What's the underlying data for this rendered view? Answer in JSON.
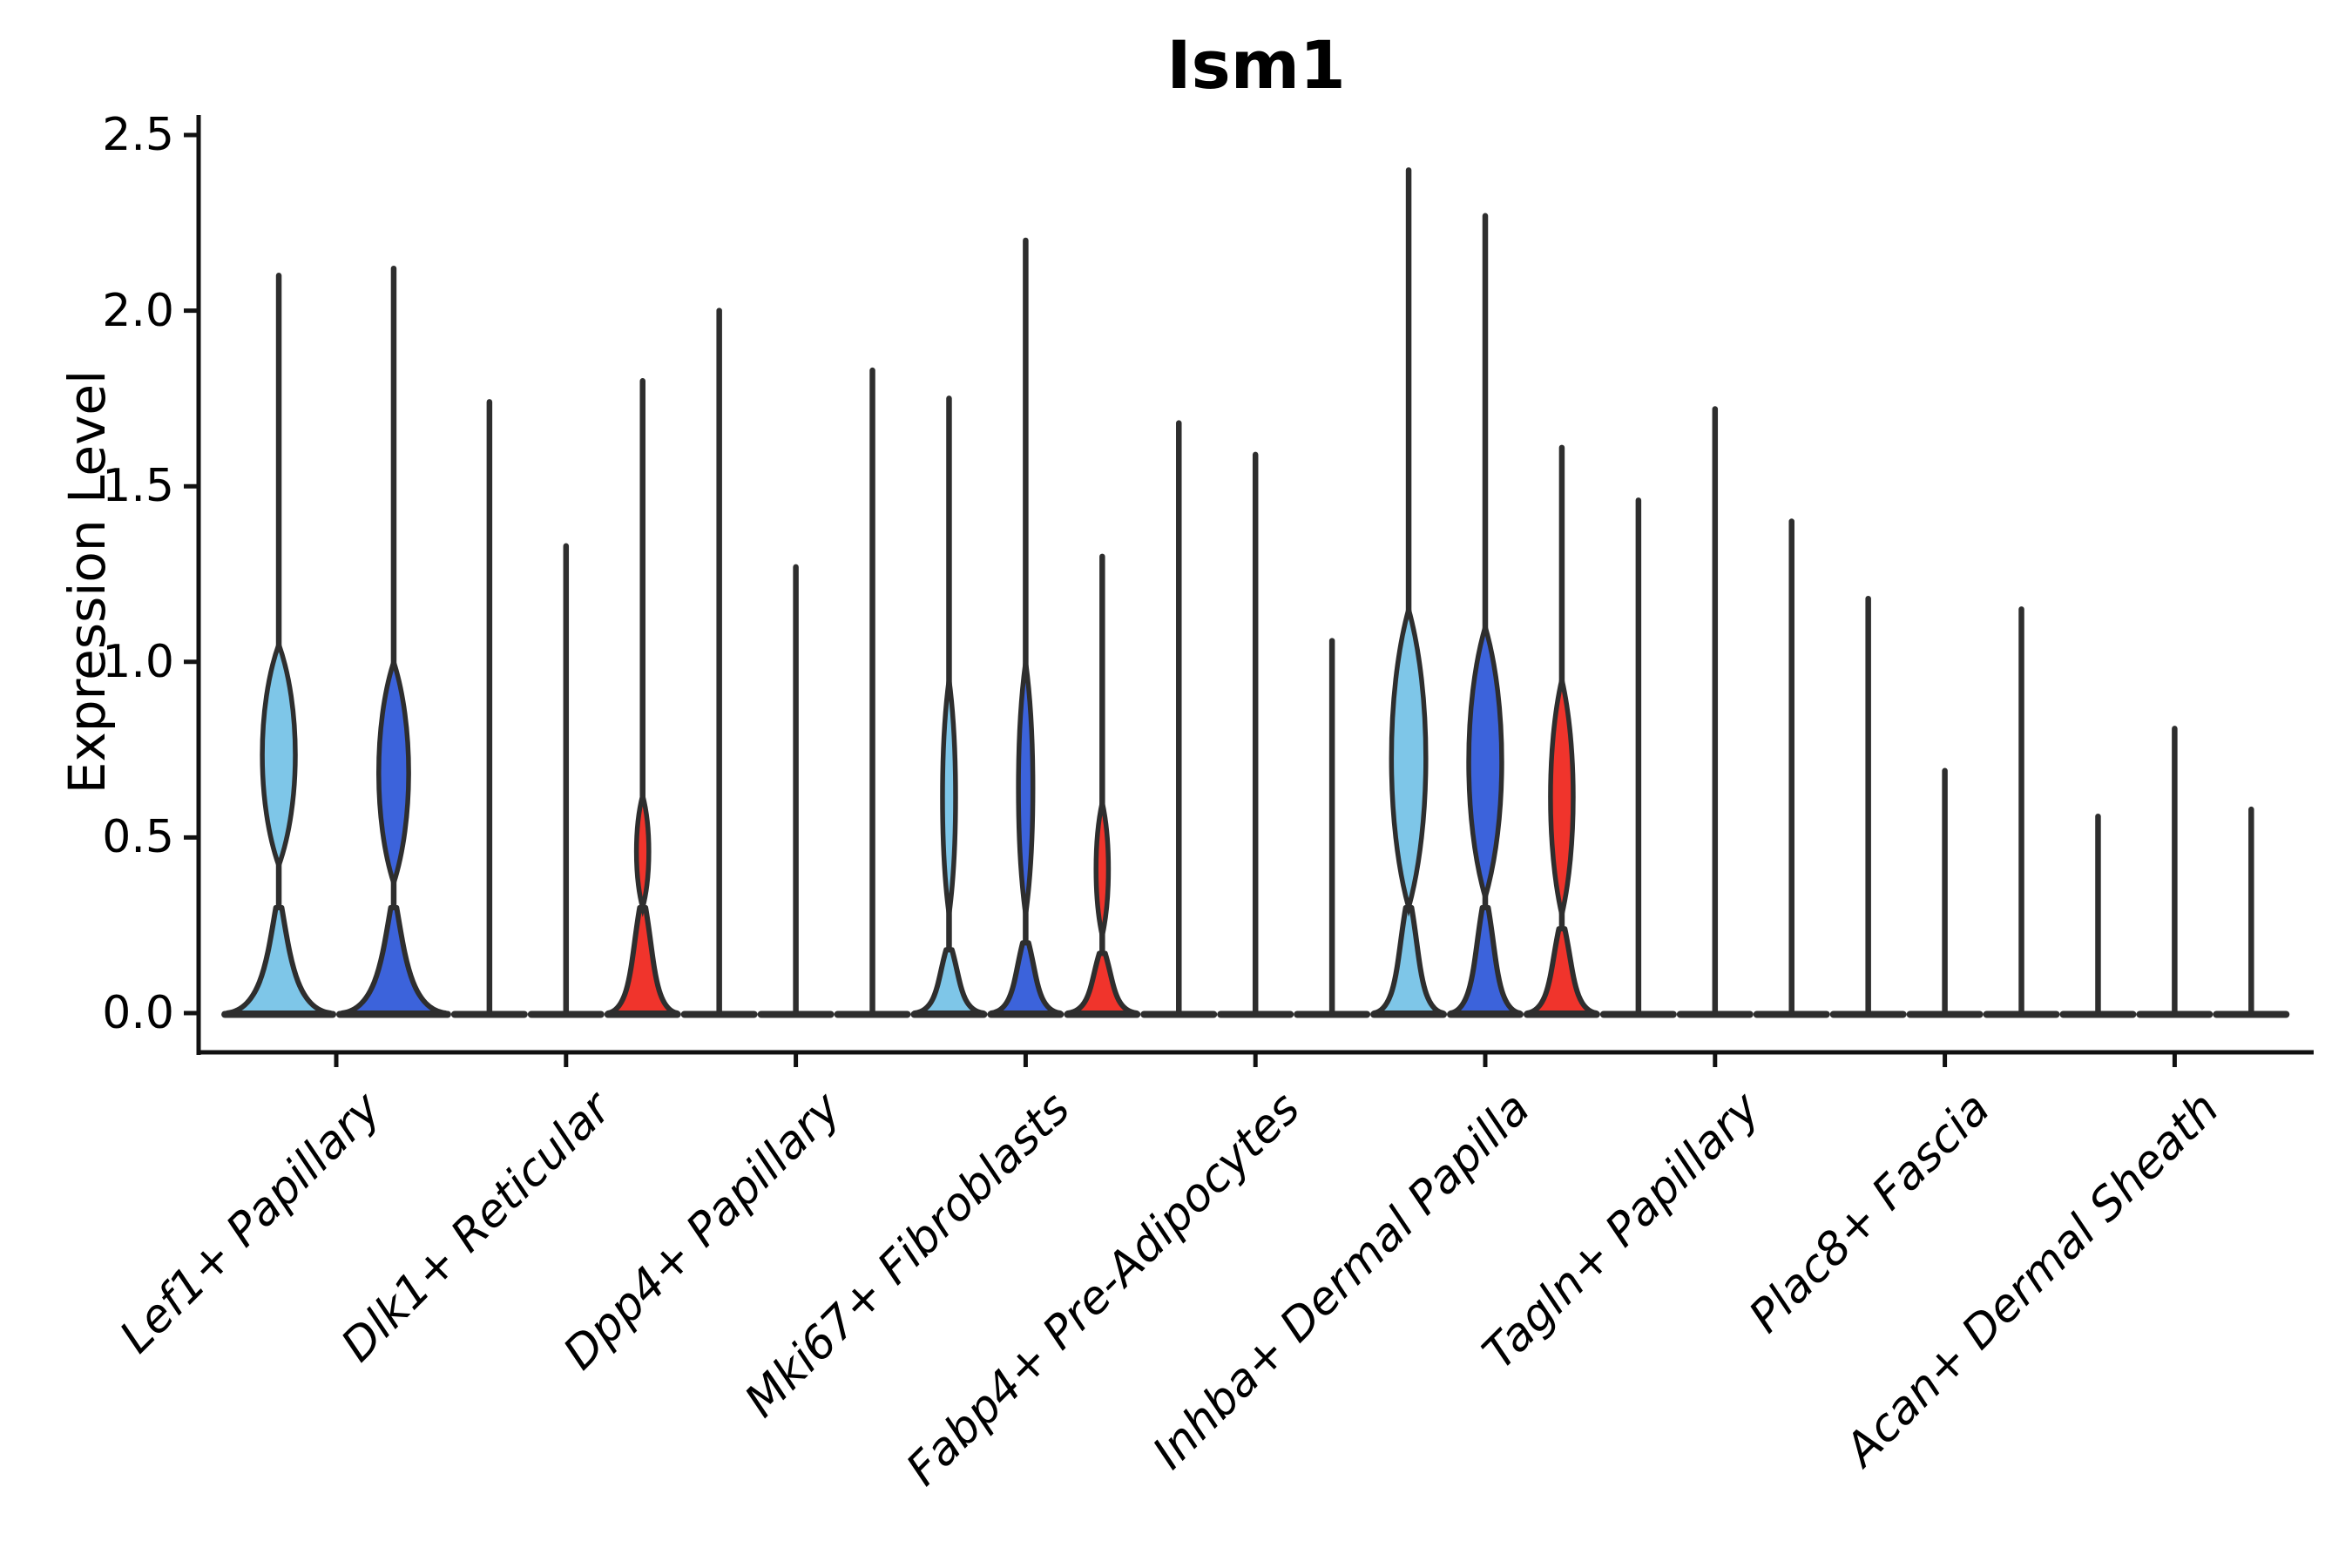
{
  "chart_data": {
    "type": "violin",
    "title": "Ism1",
    "ylabel": "Expression Level",
    "ylim": [
      0,
      2.5
    ],
    "yticks": [
      "0.0",
      "0.5",
      "1.0",
      "1.5",
      "2.0",
      "2.5"
    ],
    "legend": "none",
    "grid": false,
    "x_label_rotation_deg": 45,
    "split_colors": [
      {
        "name": "light-blue",
        "hex": "#7EC6E8"
      },
      {
        "name": "blue",
        "hex": "#3C63DB"
      },
      {
        "name": "red",
        "hex": "#F0342C"
      }
    ],
    "outline_color": "#2e2e2e",
    "axis_color": "#111111",
    "categories": [
      "Lef1+ Papillary",
      "Dlk1+ Reticular",
      "Dpp4+ Papillary",
      "Mki67+ Fibroblasts",
      "Fabp4+ Pre-Adipocytes",
      "Inhba+ Dermal Papilla",
      "Tagln+ Papillary",
      "Plac8+ Fascia",
      "Acan+ Dermal Sheath"
    ],
    "groups": [
      {
        "category": "Lef1+ Papillary",
        "violins": [
          {
            "series": "light-blue",
            "max": 2.1,
            "base_height": 0.3,
            "bulge": {
              "lo": 0.42,
              "hi": 1.05,
              "width_frac": 0.32
            }
          },
          {
            "series": "blue",
            "max": 2.12,
            "base_height": 0.3,
            "bulge": {
              "lo": 0.37,
              "hi": 1.0,
              "width_frac": 0.29
            }
          }
        ]
      },
      {
        "category": "Dlk1+ Reticular",
        "violins": [
          {
            "series": "light-blue",
            "max": 1.74
          },
          {
            "series": "blue",
            "max": 1.33
          },
          {
            "series": "red",
            "max": 1.8,
            "base_height": 0.3,
            "bulge": {
              "lo": 0.3,
              "hi": 0.62,
              "width_frac": 0.18
            }
          }
        ]
      },
      {
        "category": "Dpp4+ Papillary",
        "violins": [
          {
            "series": "light-blue",
            "max": 2.0
          },
          {
            "series": "blue",
            "max": 1.27
          },
          {
            "series": "red",
            "max": 1.83
          }
        ]
      },
      {
        "category": "Mki67+ Fibroblasts",
        "violins": [
          {
            "series": "light-blue",
            "max": 1.75,
            "base_height": 0.18,
            "bulge": {
              "lo": 0.28,
              "hi": 0.95,
              "width_frac": 0.19
            }
          },
          {
            "series": "blue",
            "max": 2.2,
            "base_height": 0.2,
            "bulge": {
              "lo": 0.28,
              "hi": 1.0,
              "width_frac": 0.21
            }
          },
          {
            "series": "red",
            "max": 1.3,
            "base_height": 0.17,
            "bulge": {
              "lo": 0.22,
              "hi": 0.6,
              "width_frac": 0.18
            }
          }
        ]
      },
      {
        "category": "Fabp4+ Pre-Adipocytes",
        "violins": [
          {
            "series": "light-blue",
            "max": 1.68
          },
          {
            "series": "blue",
            "max": 1.59
          },
          {
            "series": "red",
            "max": 1.06
          }
        ]
      },
      {
        "category": "Inhba+ Dermal Papilla",
        "violins": [
          {
            "series": "light-blue",
            "max": 2.4,
            "base_height": 0.3,
            "bulge": {
              "lo": 0.3,
              "hi": 1.15,
              "width_frac": 0.5
            }
          },
          {
            "series": "blue",
            "max": 2.27,
            "base_height": 0.3,
            "bulge": {
              "lo": 0.33,
              "hi": 1.1,
              "width_frac": 0.48
            }
          },
          {
            "series": "red",
            "max": 1.61,
            "base_height": 0.24,
            "bulge": {
              "lo": 0.28,
              "hi": 0.95,
              "width_frac": 0.33
            }
          }
        ]
      },
      {
        "category": "Tagln+ Papillary",
        "violins": [
          {
            "series": "light-blue",
            "max": 1.46
          },
          {
            "series": "blue",
            "max": 1.72
          },
          {
            "series": "red",
            "max": 1.4
          }
        ]
      },
      {
        "category": "Plac8+ Fascia",
        "violins": [
          {
            "series": "light-blue",
            "max": 1.18
          },
          {
            "series": "blue",
            "max": 0.69
          },
          {
            "series": "red",
            "max": 1.15
          }
        ]
      },
      {
        "category": "Acan+ Dermal Sheath",
        "violins": [
          {
            "series": "light-blue",
            "max": 0.56
          },
          {
            "series": "blue",
            "max": 0.81
          },
          {
            "series": "red",
            "max": 0.58
          }
        ]
      }
    ]
  }
}
